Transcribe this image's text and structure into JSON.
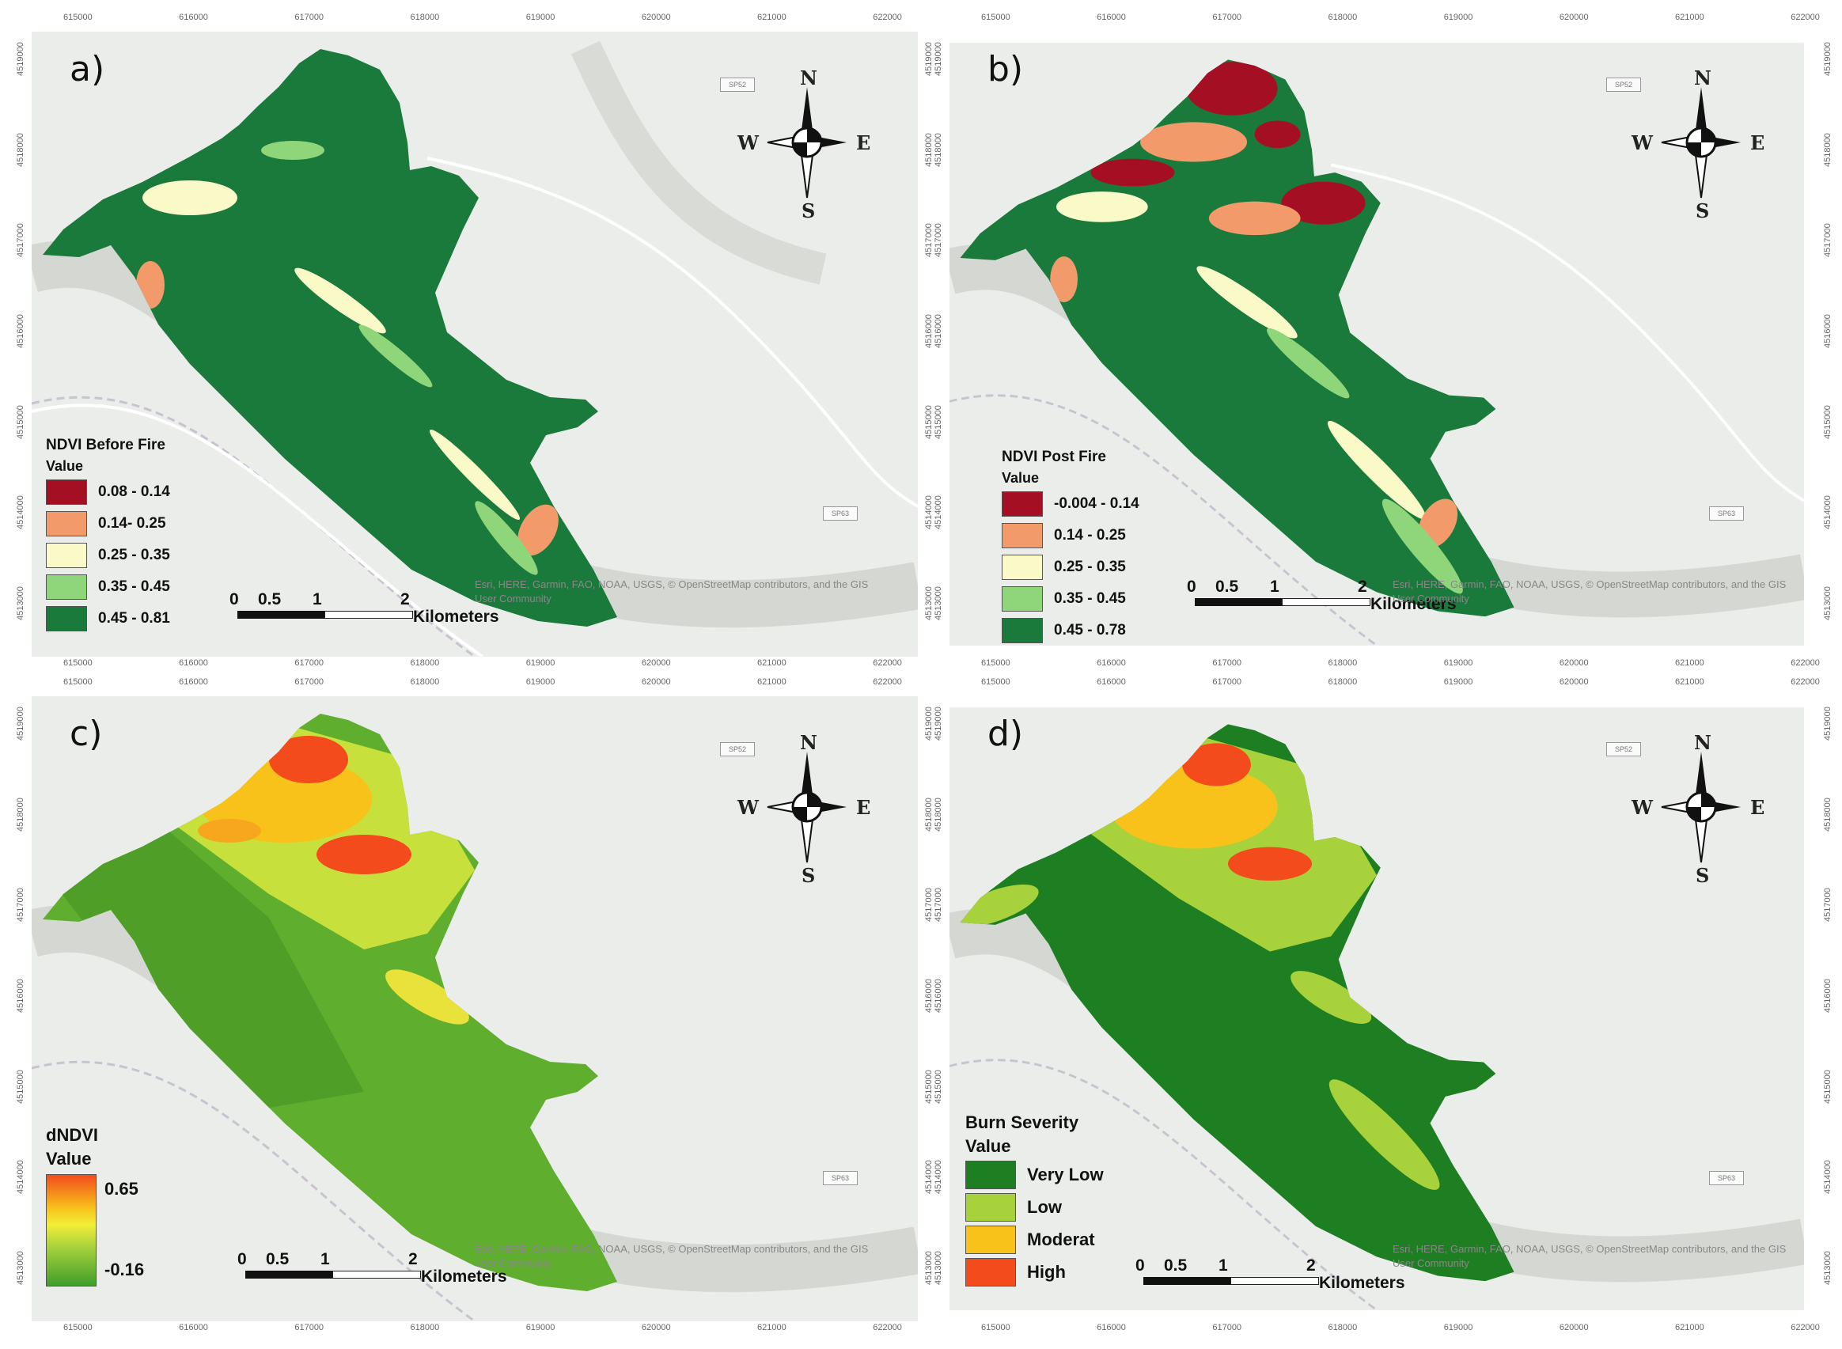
{
  "colors": {
    "basemap": "#ebedea",
    "relief": "#d5d7d3",
    "road": "#ffffff",
    "boundary": "#c9c2cf",
    "class_dark_red": "#a50f24",
    "class_orange": "#f39a6b",
    "class_cream": "#fafac8",
    "class_light_green": "#8fd57a",
    "class_dark_green": "#1a7a3c",
    "sev_very_low": "#1d7f21",
    "sev_low": "#a8d23c",
    "sev_moderate": "#f8c21a",
    "sev_high": "#f34b1c"
  },
  "compass": {
    "n": "N",
    "s": "S",
    "e": "E",
    "w": "W",
    "icon": "north-arrow-icon"
  },
  "ticks": {
    "top": [
      "615000",
      "616000",
      "617000",
      "618000",
      "619000",
      "620000",
      "621000",
      "622000"
    ],
    "bottom": [
      "615000",
      "616000",
      "617000",
      "618000",
      "619000",
      "620000",
      "621000",
      "622000"
    ],
    "left": [
      "4519000",
      "4518000",
      "4517000",
      "4516000",
      "4515000",
      "4514000",
      "4513000"
    ],
    "right": [
      "4519000",
      "4518000",
      "4517000",
      "4516000",
      "4515000",
      "4514000",
      "4513000"
    ]
  },
  "scalebar": {
    "n0": "0",
    "n1": "0.5",
    "n2": "1",
    "n3": "2",
    "unit": "Kilometers"
  },
  "credit": {
    "line1": "Esri, HERE, Garmin, FAO, NOAA, USGS, © OpenStreetMap contributors, and the GIS",
    "line2": "User Community"
  },
  "road_label": "SP52",
  "road_label2": "SP63",
  "panels": [
    {
      "letter": "a)",
      "legend_title": "NDVI Before Fire",
      "legend_value": "Value",
      "legend": [
        {
          "label": "0.08 - 0.14",
          "color": "#a50f24"
        },
        {
          "label": "0.14- 0.25",
          "color": "#f39a6b"
        },
        {
          "label": "0.25 - 0.35",
          "color": "#fafac8"
        },
        {
          "label": "0.35 - 0.45",
          "color": "#8fd57a"
        },
        {
          "label": "0.45 - 0.81",
          "color": "#1a7a3c"
        }
      ]
    },
    {
      "letter": "b)",
      "legend_title": "NDVI Post Fire",
      "legend_value": "Value",
      "legend": [
        {
          "label": "-0.004 - 0.14",
          "color": "#a50f24"
        },
        {
          "label": "0.14 - 0.25",
          "color": "#f39a6b"
        },
        {
          "label": "0.25 - 0.35",
          "color": "#fafac8"
        },
        {
          "label": "0.35 - 0.45",
          "color": "#8fd57a"
        },
        {
          "label": "0.45 - 0.78",
          "color": "#1a7a3c"
        }
      ]
    },
    {
      "letter": "c)",
      "legend_title": "dNDVI",
      "legend_value": "Value",
      "gradient_high": "0.65",
      "gradient_low": "-0.16"
    },
    {
      "letter": "d)",
      "legend_title": "Burn Severity",
      "legend_value": "Value",
      "legend": [
        {
          "label": "Very Low",
          "color": "#1d7f21"
        },
        {
          "label": "Low",
          "color": "#a8d23c"
        },
        {
          "label": "Moderat",
          "color": "#f8c21a"
        },
        {
          "label": "High",
          "color": "#f34b1c"
        }
      ]
    }
  ]
}
